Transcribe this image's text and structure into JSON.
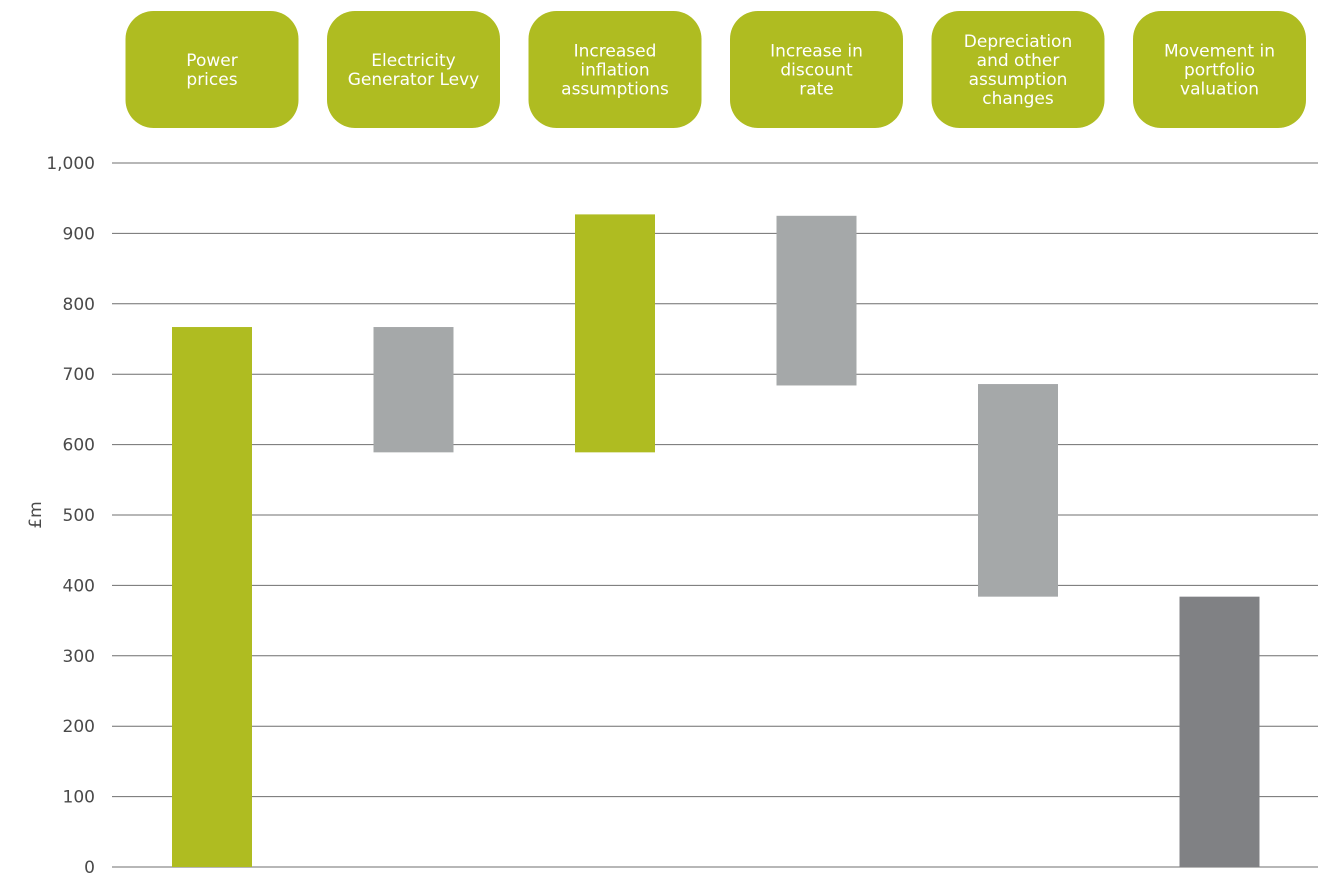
{
  "chart_data": {
    "type": "bar",
    "subtype": "waterfall",
    "categories": [
      [
        "Power",
        "prices"
      ],
      [
        "Electricity",
        "Generator Levy"
      ],
      [
        "Increased",
        "inflation",
        "assumptions"
      ],
      [
        "Increase in",
        "discount",
        "rate"
      ],
      [
        "Depreciation",
        "and other",
        "assumption",
        "changes"
      ],
      [
        "Movement in",
        "portfolio",
        "valuation"
      ]
    ],
    "bars": [
      {
        "start": 0,
        "end": 767,
        "color": "#afbc21"
      },
      {
        "start": 589,
        "end": 767,
        "color": "#a5a8a9"
      },
      {
        "start": 589,
        "end": 927,
        "color": "#afbc21"
      },
      {
        "start": 684,
        "end": 925,
        "color": "#a5a8a9"
      },
      {
        "start": 384,
        "end": 686,
        "color": "#a5a8a9"
      },
      {
        "start": 0,
        "end": 384,
        "color": "#808184"
      }
    ],
    "xlabel": "",
    "ylabel": "£m",
    "ylim": [
      0,
      1000
    ],
    "yticks": [
      0,
      100,
      200,
      300,
      400,
      500,
      600,
      700,
      800,
      900,
      1000
    ],
    "ytick_labels": [
      "0",
      "100",
      "200",
      "300",
      "400",
      "500",
      "600",
      "700",
      "800",
      "900",
      "1,000"
    ],
    "grid": true,
    "legend": "none"
  }
}
